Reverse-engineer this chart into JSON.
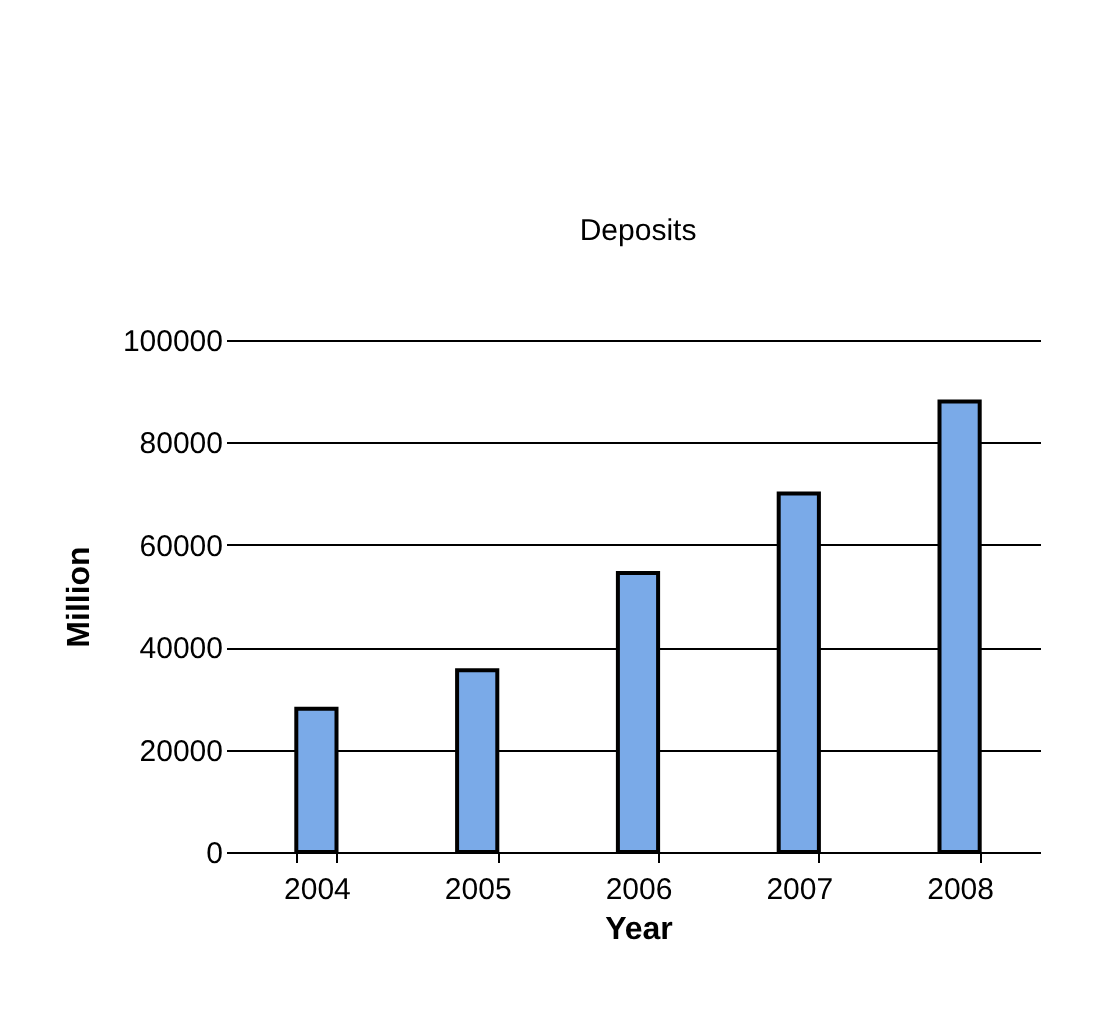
{
  "chart_data": {
    "type": "bar",
    "title": "Deposits",
    "xlabel": "Year",
    "ylabel": "Million",
    "categories": [
      "2004",
      "2005",
      "2006",
      "2007",
      "2008"
    ],
    "series": [
      {
        "color": "#7aaae8",
        "values": [
          28000,
          35500,
          54500,
          70000,
          88000
        ]
      }
    ],
    "ylim": [
      0,
      100000
    ],
    "yticks": [
      0,
      20000,
      40000,
      60000,
      80000,
      100000
    ],
    "grid": "y"
  }
}
